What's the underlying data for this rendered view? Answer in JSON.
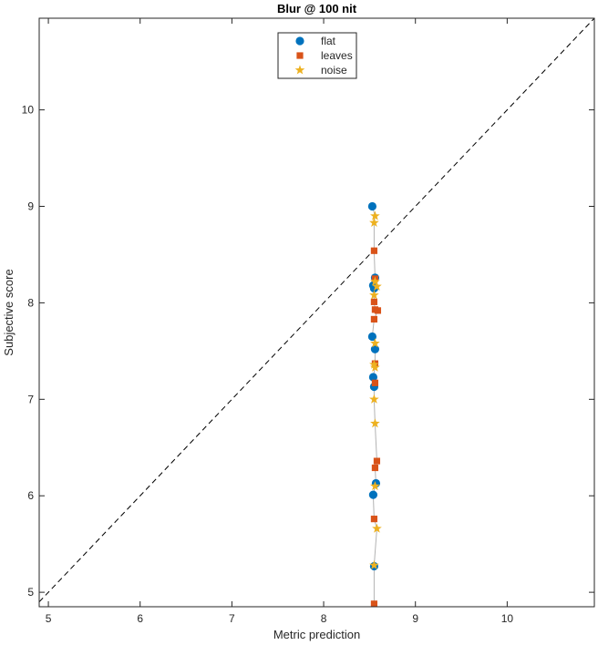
{
  "chart_data": {
    "type": "scatter",
    "title": "Blur @ 100 nit",
    "xlabel": "Metric prediction",
    "ylabel": "Subjective score",
    "xlim": [
      4.9,
      10.95
    ],
    "ylim": [
      4.85,
      10.95
    ],
    "xticks": [
      "5",
      "6",
      "7",
      "8",
      "9",
      "10"
    ],
    "yticks": [
      "5",
      "6",
      "7",
      "8",
      "9",
      "10"
    ],
    "grid": false,
    "legend_position": "top-center",
    "identity_line": true,
    "series": [
      {
        "name": "flat",
        "marker": "circle",
        "color": "#0072BD",
        "points": [
          {
            "x": 8.53,
            "y": 9.0
          },
          {
            "x": 8.56,
            "y": 8.26
          },
          {
            "x": 8.54,
            "y": 8.18
          },
          {
            "x": 8.55,
            "y": 8.15
          },
          {
            "x": 8.53,
            "y": 7.65
          },
          {
            "x": 8.56,
            "y": 7.52
          },
          {
            "x": 8.54,
            "y": 7.23
          },
          {
            "x": 8.55,
            "y": 7.13
          },
          {
            "x": 8.57,
            "y": 6.13
          },
          {
            "x": 8.54,
            "y": 6.01
          },
          {
            "x": 8.55,
            "y": 5.27
          }
        ]
      },
      {
        "name": "leaves",
        "marker": "square",
        "color": "#D95319",
        "points": [
          {
            "x": 8.55,
            "y": 8.54
          },
          {
            "x": 8.56,
            "y": 8.25
          },
          {
            "x": 8.55,
            "y": 8.01
          },
          {
            "x": 8.56,
            "y": 7.93
          },
          {
            "x": 8.59,
            "y": 7.92
          },
          {
            "x": 8.55,
            "y": 7.83
          },
          {
            "x": 8.56,
            "y": 7.37
          },
          {
            "x": 8.56,
            "y": 7.17
          },
          {
            "x": 8.58,
            "y": 6.36
          },
          {
            "x": 8.56,
            "y": 6.29
          },
          {
            "x": 8.55,
            "y": 5.76
          },
          {
            "x": 8.55,
            "y": 4.88
          }
        ]
      },
      {
        "name": "noise",
        "marker": "star",
        "color": "#EDB120",
        "points": [
          {
            "x": 8.56,
            "y": 8.9
          },
          {
            "x": 8.55,
            "y": 8.83
          },
          {
            "x": 8.56,
            "y": 8.22
          },
          {
            "x": 8.58,
            "y": 8.17
          },
          {
            "x": 8.55,
            "y": 8.08
          },
          {
            "x": 8.56,
            "y": 7.58
          },
          {
            "x": 8.55,
            "y": 7.36
          },
          {
            "x": 8.56,
            "y": 7.33
          },
          {
            "x": 8.55,
            "y": 7.0
          },
          {
            "x": 8.56,
            "y": 6.75
          },
          {
            "x": 8.56,
            "y": 6.1
          },
          {
            "x": 8.58,
            "y": 5.66
          },
          {
            "x": 8.55,
            "y": 5.28
          }
        ]
      }
    ]
  }
}
